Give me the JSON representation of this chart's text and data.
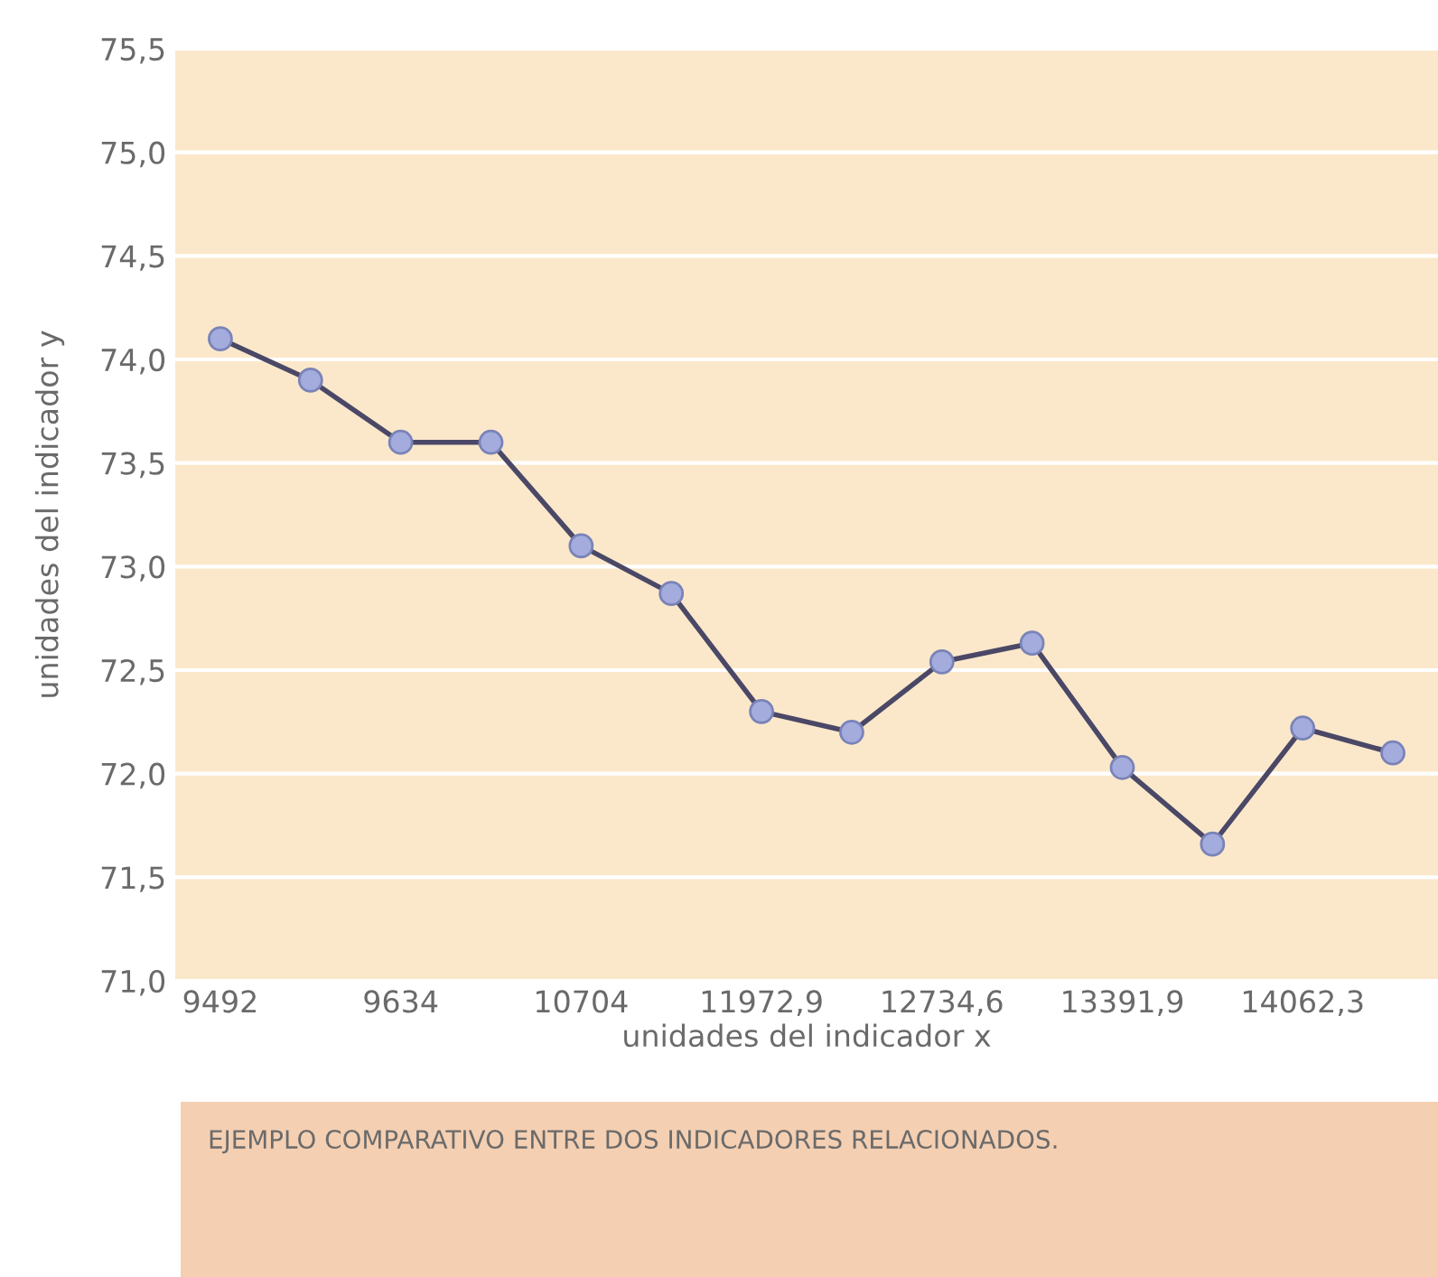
{
  "chart_data": {
    "type": "line",
    "xlabel": "unidades del indicador x",
    "ylabel": "unidades del indicador y",
    "categories": [
      "9492",
      null,
      "9634",
      null,
      "10704",
      null,
      "11972,9",
      null,
      "12734,6",
      null,
      "13391,9",
      null,
      "14062,3",
      null
    ],
    "series": [
      {
        "color": "#4a4866",
        "values": [
          74.1,
          73.9,
          73.6,
          73.6,
          73.1,
          72.87,
          72.3,
          72.2,
          72.54,
          72.63,
          72.03,
          71.66,
          72.22,
          72.1
        ]
      }
    ],
    "marker": "circle",
    "grid": "y",
    "ylim": [
      71.0,
      75.5
    ],
    "yticks": [
      {
        "value": 71.0,
        "label": "71,0"
      },
      {
        "value": 71.5,
        "label": "71,5"
      },
      {
        "value": 72.0,
        "label": "72,0"
      },
      {
        "value": 72.5,
        "label": "72,5"
      },
      {
        "value": 73.0,
        "label": "73,0"
      },
      {
        "value": 73.5,
        "label": "73,5"
      },
      {
        "value": 74.0,
        "label": "74,0"
      },
      {
        "value": 74.5,
        "label": "74,5"
      },
      {
        "value": 75.0,
        "label": "75,0"
      },
      {
        "value": 75.5,
        "label": "75,5"
      }
    ],
    "annotations": [
      "EJEMPLO COMPARATIVO ENTRE DOS INDICADORES RELACIONADOS."
    ]
  }
}
